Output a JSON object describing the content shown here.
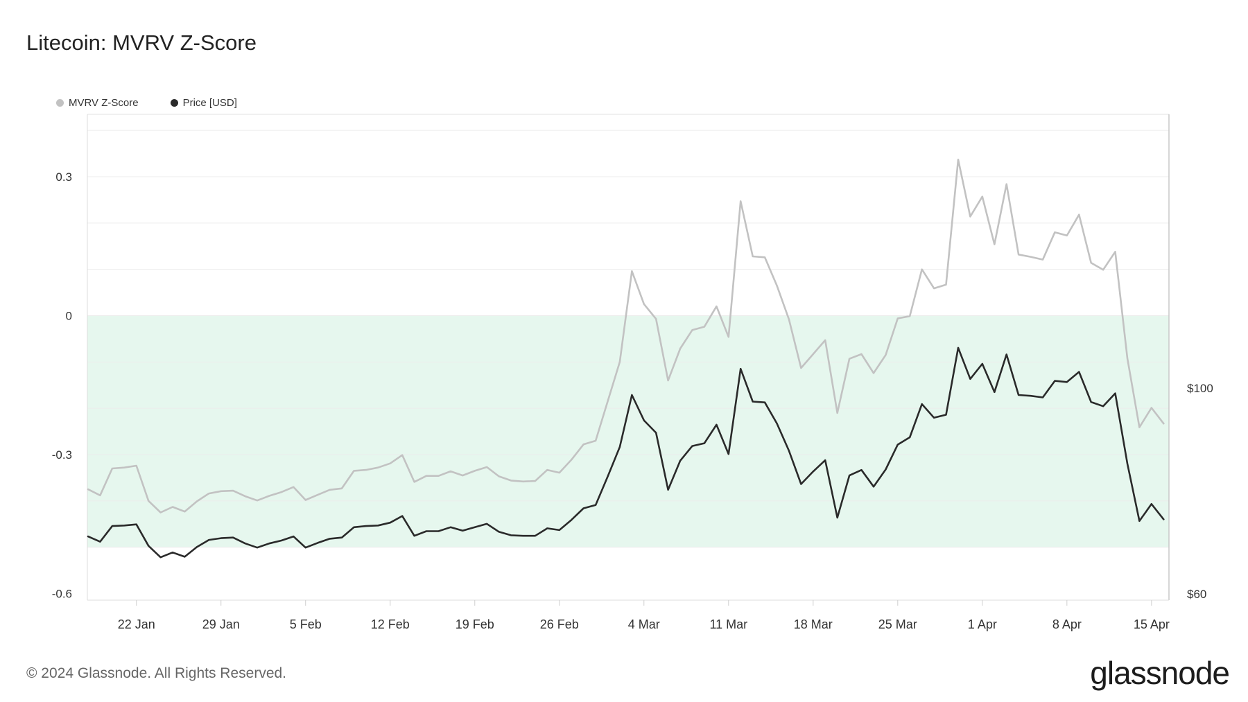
{
  "title": "Litecoin: MVRV Z-Score",
  "legend": [
    {
      "label": "MVRV Z-Score",
      "color": "#c2c2c2"
    },
    {
      "label": "Price [USD]",
      "color": "#2a2a2a"
    }
  ],
  "footer": {
    "copyright": "© 2024 Glassnode. All Rights Reserved.",
    "brand": "glassnode"
  },
  "chart_data": {
    "type": "line",
    "title": "Litecoin: MVRV Z-Score",
    "x_tick_labels": [
      "22 Jan",
      "29 Jan",
      "5 Feb",
      "12 Feb",
      "19 Feb",
      "26 Feb",
      "4 Mar",
      "11 Mar",
      "18 Mar",
      "25 Mar",
      "1 Apr",
      "8 Apr",
      "15 Apr"
    ],
    "x_tick_index": [
      4,
      11,
      18,
      25,
      32,
      39,
      46,
      53,
      60,
      67,
      74,
      81,
      88
    ],
    "y_left": {
      "ticks": [
        0.3,
        0,
        -0.3,
        -0.6
      ],
      "tick_labels": [
        "0.3",
        "0",
        "-0.3",
        "-0.6"
      ],
      "range": [
        -0.6,
        0.45
      ]
    },
    "y_right": {
      "ticks": [
        100,
        60
      ],
      "tick_labels": [
        "$100",
        "$60"
      ],
      "range": [
        60,
        146
      ],
      "scale": "log"
    },
    "highlight_band": {
      "from": -0.5,
      "to": 0,
      "color": "#e6f7ee"
    },
    "grid": true,
    "series": [
      {
        "name": "MVRV Z-Score",
        "axis": "left",
        "color": "#c2c2c2",
        "values": [
          -0.375,
          -0.388,
          -0.33,
          -0.328,
          -0.324,
          -0.4,
          -0.425,
          -0.413,
          -0.423,
          -0.401,
          -0.384,
          -0.379,
          -0.378,
          -0.39,
          -0.399,
          -0.389,
          -0.381,
          -0.37,
          -0.398,
          -0.387,
          -0.376,
          -0.373,
          -0.335,
          -0.333,
          -0.328,
          -0.319,
          -0.301,
          -0.359,
          -0.346,
          -0.346,
          -0.336,
          -0.345,
          -0.335,
          -0.327,
          -0.347,
          -0.356,
          -0.358,
          -0.357,
          -0.333,
          -0.339,
          -0.311,
          -0.278,
          -0.27,
          -0.185,
          -0.1,
          0.096,
          0.025,
          -0.007,
          -0.14,
          -0.071,
          -0.031,
          -0.024,
          0.02,
          -0.046,
          0.247,
          0.128,
          0.126,
          0.065,
          -0.008,
          -0.113,
          -0.083,
          -0.053,
          -0.21,
          -0.093,
          -0.083,
          -0.124,
          -0.085,
          -0.006,
          -0.001,
          0.1,
          0.059,
          0.067,
          0.337,
          0.214,
          0.257,
          0.154,
          0.284,
          0.132,
          0.127,
          0.121,
          0.18,
          0.173,
          0.218,
          0.114,
          0.099,
          0.138,
          -0.092,
          -0.241,
          -0.199,
          -0.233
        ]
      },
      {
        "name": "Price [USD]",
        "axis": "right",
        "color": "#2a2a2a",
        "values": [
          69.2,
          68.3,
          71.0,
          71.1,
          71.3,
          67.6,
          65.7,
          66.5,
          65.8,
          67.4,
          68.6,
          68.9,
          69.0,
          68.0,
          67.3,
          68.0,
          68.5,
          69.2,
          67.3,
          68.1,
          68.8,
          69.0,
          70.8,
          71.0,
          71.1,
          71.6,
          72.8,
          69.3,
          70.1,
          70.1,
          70.8,
          70.2,
          70.8,
          71.4,
          70.0,
          69.4,
          69.3,
          69.3,
          70.6,
          70.3,
          72.1,
          74.2,
          74.8,
          80.3,
          86.4,
          98.3,
          92.3,
          89.5,
          77.7,
          83.5,
          86.6,
          87.2,
          91.3,
          84.9,
          104.9,
          96.7,
          96.5,
          91.6,
          85.6,
          78.8,
          81.3,
          83.6,
          72.5,
          80.5,
          81.6,
          78.3,
          81.7,
          86.9,
          88.5,
          96.1,
          92.9,
          93.6,
          110.5,
          102.3,
          106.2,
          99.0,
          108.7,
          98.3,
          98.1,
          97.7,
          101.8,
          101.5,
          104.1,
          96.6,
          95.6,
          98.7,
          82.9,
          71.9,
          75.0,
          72.2
        ]
      }
    ]
  }
}
